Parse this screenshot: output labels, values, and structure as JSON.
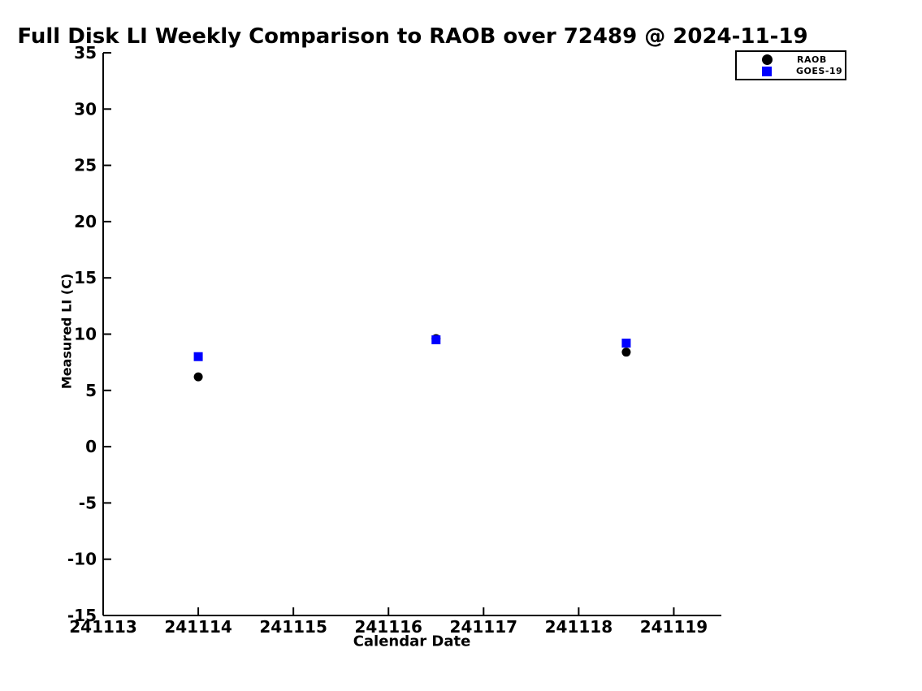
{
  "chart_data": {
    "type": "scatter",
    "title": "Full Disk LI Weekly Comparison to RAOB over 72489 @ 2024-11-19",
    "xlabel": "Calendar Date",
    "ylabel": "Measured LI (C)",
    "xlim": [
      241113,
      241119.5
    ],
    "ylim": [
      -15,
      35
    ],
    "xticks": [
      241113,
      241114,
      241115,
      241116,
      241117,
      241118,
      241119
    ],
    "yticks": [
      -15,
      -10,
      -5,
      0,
      5,
      10,
      15,
      20,
      25,
      30,
      35
    ],
    "grid": false,
    "legend_position": "top-right",
    "axis_color": "#000000",
    "background_color": "#ffffff",
    "x": [
      241114.0,
      241116.5,
      241118.5
    ],
    "series": [
      {
        "name": "RAOB",
        "marker": "circle",
        "color": "#000000",
        "values": [
          6.2,
          9.6,
          8.4
        ]
      },
      {
        "name": "GOES-19",
        "marker": "square",
        "color": "#0000ff",
        "values": [
          8.0,
          9.5,
          9.2
        ]
      }
    ]
  }
}
